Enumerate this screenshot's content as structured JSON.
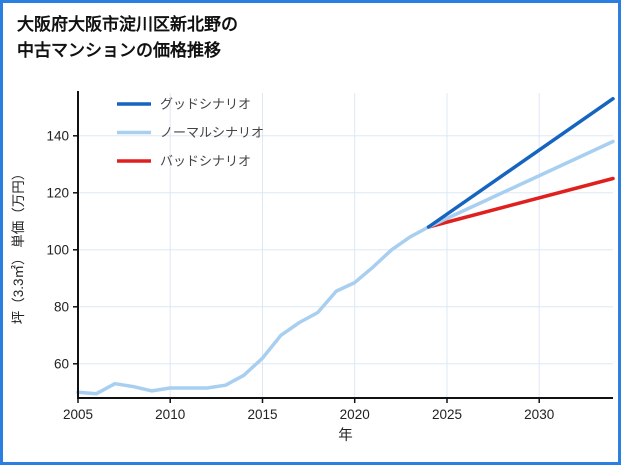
{
  "title": {
    "line1": "大阪府大阪市淀川区新北野の",
    "line2": "中古マンションの価格推移"
  },
  "frame": {
    "border_color": "#2a7fe0"
  },
  "chart_data": {
    "type": "line",
    "title": "大阪府大阪市淀川区新北野の中古マンションの価格推移",
    "xlabel": "年",
    "ylabel": "坪（3.3㎡） 単価（万円）",
    "xlim": [
      2005,
      2034
    ],
    "ylim": [
      48,
      155
    ],
    "x_ticks": [
      2005,
      2010,
      2015,
      2020,
      2025,
      2030
    ],
    "y_ticks": [
      60,
      80,
      100,
      120,
      140
    ],
    "grid": true,
    "legend_position": "top-left",
    "colors": {
      "grid": "#dde8f4",
      "axis": "#111111",
      "tick_label": "#222222",
      "legend_label": "#444444"
    },
    "series": [
      {
        "id": "good-scenario",
        "name": "グッドシナリオ",
        "color": "#1565c0",
        "stroke_width": 3.5,
        "x": [
          2024,
          2034
        ],
        "values": [
          108,
          153
        ]
      },
      {
        "id": "normal-scenario",
        "name": "ノーマルシナリオ",
        "color": "#a8cff0",
        "stroke_width": 3.5,
        "x": [
          2005,
          2006,
          2007,
          2008,
          2009,
          2010,
          2011,
          2012,
          2013,
          2014,
          2015,
          2016,
          2017,
          2018,
          2019,
          2020,
          2021,
          2022,
          2023,
          2024,
          2034
        ],
        "values": [
          50,
          49.5,
          53,
          52,
          50.5,
          51.5,
          51.5,
          51.5,
          52.5,
          56,
          62,
          70,
          74.5,
          78,
          85.5,
          88.5,
          94,
          100,
          104.5,
          108,
          138
        ]
      },
      {
        "id": "bad-scenario",
        "name": "バッドシナリオ",
        "color": "#e01f1f",
        "stroke_width": 3.5,
        "x": [
          2024,
          2034
        ],
        "values": [
          108,
          125
        ]
      }
    ]
  }
}
